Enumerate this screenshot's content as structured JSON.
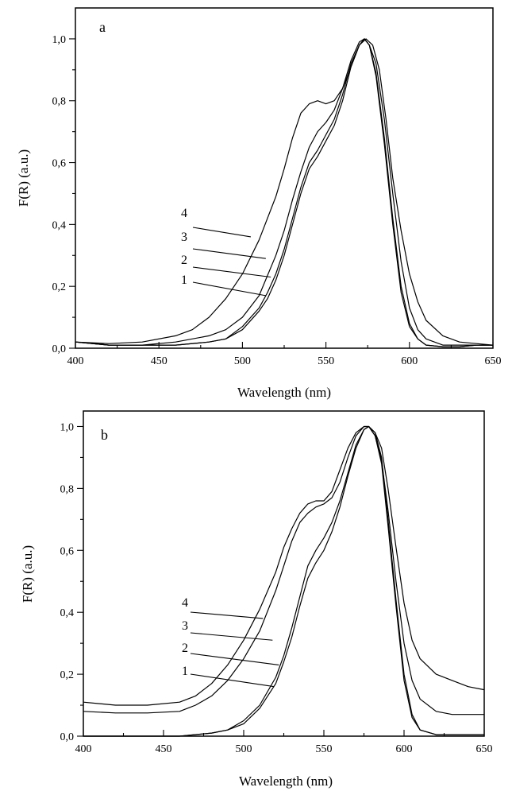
{
  "chart_data": [
    {
      "type": "line",
      "panel_label": "a",
      "xlabel": "Wavelength (nm)",
      "ylabel": "F(R) (a.u.)",
      "xlim": [
        400,
        650
      ],
      "ylim": [
        0,
        1.1
      ],
      "xticks": [
        400,
        450,
        500,
        550,
        600,
        650
      ],
      "xtick_labels": [
        "400",
        "450",
        "500",
        "550",
        "600",
        "650"
      ],
      "yticks": [
        0,
        0.2,
        0.4,
        0.6,
        0.8,
        1.0
      ],
      "ytick_labels": [
        "0,0",
        "0,2",
        "0,4",
        "0,6",
        "0,8",
        "1,0"
      ],
      "series": [
        {
          "name": "1",
          "x": [
            400,
            420,
            440,
            460,
            480,
            490,
            500,
            510,
            515,
            520,
            525,
            530,
            535,
            540,
            545,
            550,
            555,
            560,
            565,
            570,
            573,
            576,
            580,
            585,
            590,
            595,
            600,
            605,
            610,
            620,
            630,
            640,
            650
          ],
          "values": [
            0.02,
            0.01,
            0.01,
            0.01,
            0.02,
            0.03,
            0.06,
            0.12,
            0.16,
            0.22,
            0.3,
            0.4,
            0.5,
            0.58,
            0.62,
            0.67,
            0.72,
            0.8,
            0.91,
            0.98,
            1.0,
            0.98,
            0.88,
            0.66,
            0.4,
            0.18,
            0.07,
            0.03,
            0.01,
            0.005,
            0.005,
            0.01,
            0.01
          ]
        },
        {
          "name": "2",
          "x": [
            400,
            420,
            440,
            460,
            480,
            490,
            500,
            510,
            515,
            520,
            525,
            530,
            535,
            540,
            545,
            550,
            555,
            560,
            565,
            570,
            573,
            576,
            580,
            585,
            590,
            595,
            600,
            605,
            610,
            620,
            630,
            640,
            650
          ],
          "values": [
            0.02,
            0.01,
            0.01,
            0.01,
            0.02,
            0.03,
            0.07,
            0.13,
            0.18,
            0.24,
            0.32,
            0.42,
            0.52,
            0.6,
            0.64,
            0.69,
            0.74,
            0.82,
            0.92,
            0.98,
            1.0,
            0.98,
            0.89,
            0.68,
            0.42,
            0.2,
            0.08,
            0.03,
            0.01,
            0.005,
            0.005,
            0.01,
            0.01
          ]
        },
        {
          "name": "3",
          "x": [
            400,
            420,
            440,
            460,
            480,
            490,
            500,
            510,
            520,
            525,
            530,
            535,
            540,
            545,
            550,
            555,
            560,
            565,
            570,
            573,
            576,
            580,
            585,
            590,
            595,
            600,
            605,
            610,
            620,
            630,
            640,
            650
          ],
          "values": [
            0.02,
            0.01,
            0.01,
            0.02,
            0.04,
            0.06,
            0.1,
            0.17,
            0.3,
            0.38,
            0.48,
            0.57,
            0.65,
            0.7,
            0.73,
            0.77,
            0.84,
            0.93,
            0.99,
            1.0,
            0.98,
            0.92,
            0.74,
            0.5,
            0.28,
            0.13,
            0.06,
            0.03,
            0.01,
            0.01,
            0.01,
            0.01
          ]
        },
        {
          "name": "4",
          "x": [
            400,
            420,
            440,
            460,
            470,
            480,
            490,
            500,
            510,
            520,
            525,
            530,
            535,
            540,
            545,
            550,
            555,
            560,
            565,
            570,
            574,
            578,
            582,
            586,
            590,
            595,
            600,
            605,
            610,
            620,
            630,
            640,
            650
          ],
          "values": [
            0.02,
            0.015,
            0.02,
            0.04,
            0.06,
            0.1,
            0.16,
            0.24,
            0.35,
            0.49,
            0.58,
            0.68,
            0.76,
            0.79,
            0.8,
            0.79,
            0.8,
            0.84,
            0.91,
            0.98,
            1.0,
            0.98,
            0.9,
            0.74,
            0.55,
            0.38,
            0.24,
            0.15,
            0.09,
            0.04,
            0.02,
            0.015,
            0.01
          ]
        }
      ],
      "annotations": [
        {
          "text": "4",
          "points_to": {
            "x": 505,
            "y": 0.36
          }
        },
        {
          "text": "3",
          "points_to": {
            "x": 514,
            "y": 0.29
          }
        },
        {
          "text": "2",
          "points_to": {
            "x": 517,
            "y": 0.23
          }
        },
        {
          "text": "1",
          "points_to": {
            "x": 514,
            "y": 0.17
          }
        }
      ]
    },
    {
      "type": "line",
      "panel_label": "b",
      "xlabel": "Wavelength (nm)",
      "ylabel": "F(R) (a.u.)",
      "xlim": [
        400,
        650
      ],
      "ylim": [
        0,
        1.05
      ],
      "xticks": [
        400,
        450,
        500,
        550,
        600,
        650
      ],
      "xtick_labels": [
        "400",
        "450",
        "500",
        "550",
        "600",
        "650"
      ],
      "yticks": [
        0,
        0.2,
        0.4,
        0.6,
        0.8,
        1.0
      ],
      "ytick_labels": [
        "0,0",
        "0,2",
        "0,4",
        "0,6",
        "0,8",
        "1,0"
      ],
      "series": [
        {
          "name": "1",
          "x": [
            400,
            420,
            440,
            460,
            480,
            490,
            500,
            510,
            520,
            525,
            530,
            535,
            540,
            545,
            550,
            555,
            560,
            565,
            570,
            575,
            578,
            582,
            586,
            590,
            595,
            600,
            605,
            610,
            620,
            630,
            640,
            650
          ],
          "values": [
            0.0,
            0.0,
            0.0,
            0.0,
            0.01,
            0.02,
            0.04,
            0.09,
            0.17,
            0.24,
            0.32,
            0.42,
            0.51,
            0.56,
            0.6,
            0.66,
            0.74,
            0.84,
            0.93,
            0.99,
            1.0,
            0.97,
            0.88,
            0.68,
            0.42,
            0.18,
            0.06,
            0.02,
            0.005,
            0.005,
            0.005,
            0.005
          ]
        },
        {
          "name": "2",
          "x": [
            400,
            420,
            440,
            460,
            480,
            490,
            500,
            510,
            520,
            525,
            530,
            535,
            540,
            545,
            550,
            555,
            560,
            565,
            570,
            575,
            578,
            582,
            586,
            590,
            595,
            600,
            605,
            610,
            620,
            630,
            640,
            650
          ],
          "values": [
            0.0,
            0.0,
            0.0,
            0.0,
            0.01,
            0.02,
            0.05,
            0.1,
            0.19,
            0.26,
            0.35,
            0.45,
            0.55,
            0.6,
            0.64,
            0.69,
            0.76,
            0.85,
            0.94,
            0.99,
            1.0,
            0.98,
            0.9,
            0.7,
            0.44,
            0.2,
            0.07,
            0.02,
            0.005,
            0.005,
            0.005,
            0.005
          ]
        },
        {
          "name": "3",
          "x": [
            400,
            420,
            440,
            460,
            470,
            480,
            490,
            500,
            510,
            520,
            525,
            530,
            535,
            540,
            545,
            550,
            555,
            560,
            565,
            570,
            575,
            578,
            582,
            586,
            590,
            595,
            600,
            605,
            610,
            620,
            630,
            640,
            650
          ],
          "values": [
            0.08,
            0.075,
            0.075,
            0.08,
            0.1,
            0.13,
            0.18,
            0.25,
            0.34,
            0.47,
            0.55,
            0.63,
            0.69,
            0.72,
            0.74,
            0.75,
            0.77,
            0.82,
            0.9,
            0.97,
            1.0,
            1.0,
            0.97,
            0.89,
            0.73,
            0.5,
            0.3,
            0.18,
            0.12,
            0.08,
            0.07,
            0.07,
            0.07
          ]
        },
        {
          "name": "4",
          "x": [
            400,
            420,
            440,
            460,
            470,
            480,
            490,
            500,
            510,
            520,
            525,
            530,
            535,
            540,
            545,
            550,
            555,
            560,
            565,
            570,
            575,
            578,
            582,
            586,
            590,
            595,
            600,
            605,
            610,
            620,
            630,
            640,
            650
          ],
          "values": [
            0.11,
            0.1,
            0.1,
            0.11,
            0.13,
            0.17,
            0.23,
            0.31,
            0.41,
            0.53,
            0.61,
            0.67,
            0.72,
            0.75,
            0.76,
            0.76,
            0.79,
            0.86,
            0.93,
            0.98,
            1.0,
            1.0,
            0.98,
            0.93,
            0.8,
            0.61,
            0.43,
            0.31,
            0.25,
            0.2,
            0.18,
            0.16,
            0.15
          ]
        }
      ],
      "annotations": [
        {
          "text": "4",
          "points_to": {
            "x": 512,
            "y": 0.38
          }
        },
        {
          "text": "3",
          "points_to": {
            "x": 518,
            "y": 0.31
          }
        },
        {
          "text": "2",
          "points_to": {
            "x": 522,
            "y": 0.23
          }
        },
        {
          "text": "1",
          "points_to": {
            "x": 519,
            "y": 0.16
          }
        }
      ]
    }
  ]
}
